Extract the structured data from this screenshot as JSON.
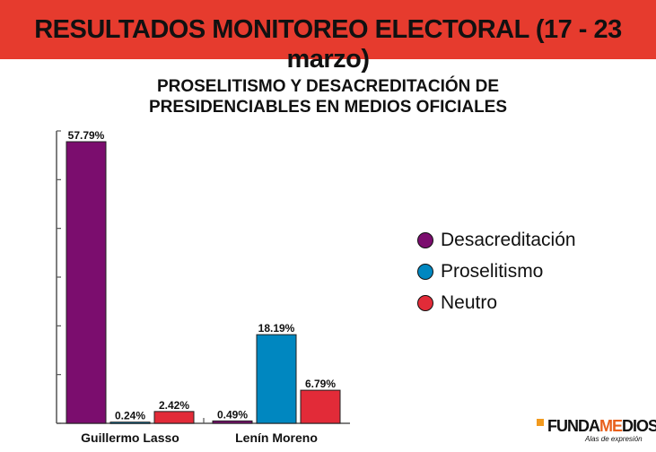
{
  "header": {
    "title": "RESULTADOS MONITOREO ELECTORAL (17 - 23 marzo)",
    "accent": "#e63b2e"
  },
  "chart_data": {
    "type": "bar",
    "title_lines": [
      "PROSELITISMO Y DESACREDITACIÓN DE",
      "PRESIDENCIABLES EN MEDIOS OFICIALES"
    ],
    "categories": [
      "Guillermo Lasso",
      "Lenín Moreno"
    ],
    "series": [
      {
        "name": "Desacreditación",
        "color": "#7b0d6e",
        "values": [
          57.79,
          0.49
        ],
        "labels": [
          "57.79%",
          "0.49%"
        ]
      },
      {
        "name": "Proselitismo",
        "color": "#0087c0",
        "values": [
          0.24,
          18.19
        ],
        "labels": [
          "0.24%",
          "18.19%"
        ]
      },
      {
        "name": "Neutro",
        "color": "#e22b38",
        "values": [
          2.42,
          6.79
        ],
        "labels": [
          "2.42%",
          "6.79%"
        ]
      }
    ],
    "ylim": [
      0,
      60
    ],
    "ytick_step": 10,
    "ytick_labels_shown": false,
    "grid": false,
    "legend": "right"
  },
  "logo": {
    "text": "FUNDAMEDIOS",
    "tagline": "Alas de expresión"
  }
}
